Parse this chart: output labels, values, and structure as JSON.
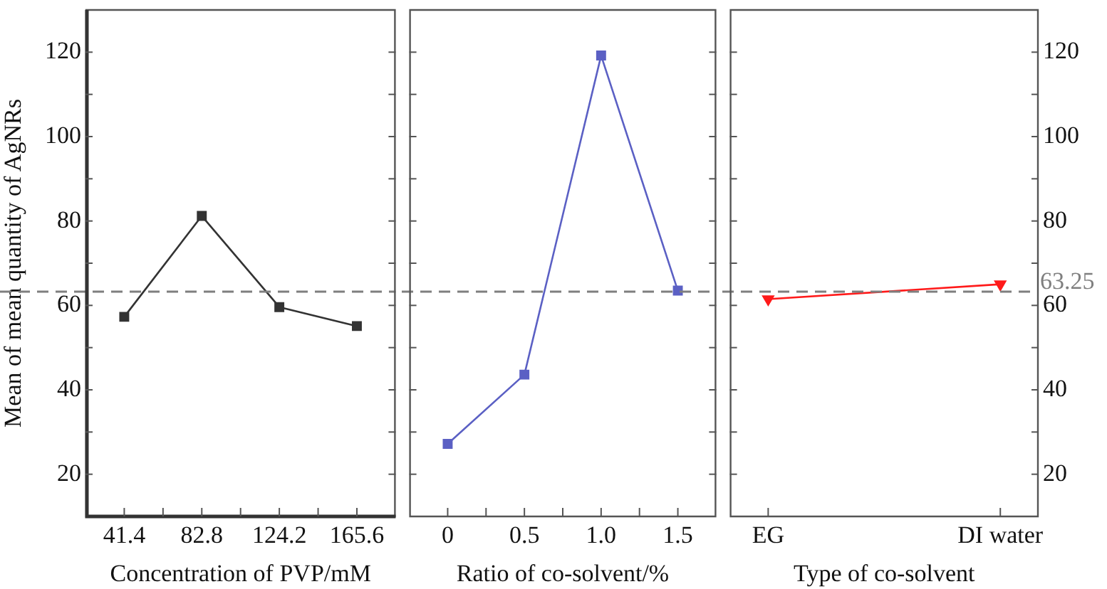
{
  "chart_data": [
    {
      "type": "line",
      "xlabel": "Concentration of PVP/mM",
      "ylabel": "Mean of mean quantity of AgNRs",
      "x": [
        41.4,
        82.8,
        124.2,
        165.6
      ],
      "series": [
        {
          "color": "#333333",
          "values": [
            57.3,
            81.2,
            59.6,
            55.1
          ]
        }
      ],
      "xlim": [
        20.7,
        186.3
      ],
      "xticks": [
        41.4,
        {
          "value": 62.1,
          "label": null
        },
        82.8,
        {
          "value": 103.5,
          "label": null
        },
        124.2,
        {
          "value": 144.9,
          "label": null
        },
        165.6
      ],
      "ylim": [
        10,
        130
      ],
      "yticks": [
        20,
        {
          "value": 30,
          "label": null
        },
        40,
        {
          "value": 50,
          "label": null
        },
        60,
        {
          "value": 70,
          "label": null
        },
        80,
        {
          "value": 90,
          "label": null
        },
        100,
        {
          "value": 110,
          "label": null
        },
        120
      ],
      "ref_lines": [
        {
          "axis": "y",
          "value": 63.25,
          "color": "#7f7f7f",
          "line_style": "dashed"
        }
      ],
      "marker": "square",
      "grid": false,
      "legend": false
    },
    {
      "type": "line",
      "xlabel": "Ratio of co-solvent/%",
      "x": [
        0,
        0.5,
        1.0,
        1.5
      ],
      "series": [
        {
          "color": "#5b60c4",
          "values": [
            27.2,
            43.6,
            119.2,
            63.5
          ]
        }
      ],
      "xlim": [
        -0.25,
        1.75
      ],
      "xticks": [
        {
          "value": 0,
          "label": "0"
        },
        {
          "value": 0.25,
          "label": null
        },
        {
          "value": 0.5,
          "label": "0.5"
        },
        {
          "value": 0.75,
          "label": null
        },
        {
          "value": 1.0,
          "label": "1.0"
        },
        {
          "value": 1.25,
          "label": null
        },
        {
          "value": 1.5,
          "label": "1.5"
        }
      ],
      "ylim": [
        10,
        130
      ],
      "yticks": [
        20,
        {
          "value": 30,
          "label": null
        },
        40,
        {
          "value": 50,
          "label": null
        },
        60,
        {
          "value": 70,
          "label": null
        },
        80,
        {
          "value": 90,
          "label": null
        },
        100,
        {
          "value": 110,
          "label": null
        },
        120
      ],
      "tick_labels": "x",
      "ref_lines": [
        {
          "axis": "y",
          "value": 63.25,
          "color": "#7f7f7f",
          "line_style": "dashed"
        }
      ],
      "marker": "square",
      "grid": false,
      "legend": false
    },
    {
      "type": "line",
      "xlabel": "Type of co-solvent",
      "categories": [
        "EG",
        "DI water"
      ],
      "series": [
        {
          "color": "#ff1a1a",
          "values": [
            61.5,
            65.0
          ],
          "axis": "y2"
        }
      ],
      "y2lim": [
        10,
        130
      ],
      "y2ticks": [
        20,
        {
          "value": 30,
          "label": null
        },
        40,
        {
          "value": 50,
          "label": null
        },
        60,
        {
          "value": 70,
          "label": null
        },
        80,
        {
          "value": 90,
          "label": null
        },
        100,
        {
          "value": 110,
          "label": null
        },
        120
      ],
      "ref_lines": [
        {
          "axis": "y2",
          "value": 63.25,
          "label": "63.25",
          "color": "#7f7f7f",
          "line_style": "dashed"
        }
      ],
      "marker": "triangle",
      "grid": false,
      "legend": false
    }
  ]
}
